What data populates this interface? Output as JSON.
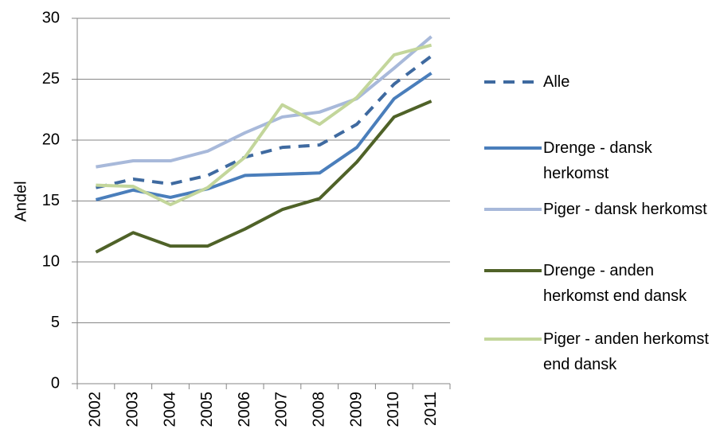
{
  "chart_data": {
    "type": "line",
    "y_label": "Andel",
    "categories": [
      "2002",
      "2003",
      "2004",
      "2005",
      "2006",
      "2007",
      "2008",
      "2009",
      "2010",
      "2011"
    ],
    "ylim": [
      0,
      30
    ],
    "yticks": [
      0,
      5,
      10,
      15,
      20,
      25,
      30
    ],
    "grid": true,
    "series": [
      {
        "name": "Alle",
        "color": "#3f6aa0",
        "dashed": true,
        "values": [
          16.1,
          16.8,
          16.4,
          17.1,
          18.6,
          19.4,
          19.6,
          21.3,
          24.6,
          26.9
        ]
      },
      {
        "name": "Drenge - dansk herkomst",
        "color": "#4a7ebb",
        "values": [
          15.1,
          15.9,
          15.3,
          16.0,
          17.1,
          17.2,
          17.3,
          19.4,
          23.4,
          25.5
        ]
      },
      {
        "name": "Piger - dansk herkomst",
        "color": "#a8b9da",
        "values": [
          17.8,
          18.3,
          18.3,
          19.1,
          20.6,
          21.9,
          22.3,
          23.4,
          25.9,
          28.5
        ]
      },
      {
        "name": "Drenge - anden herkomst end dansk",
        "color": "#4f6228",
        "values": [
          10.8,
          12.4,
          11.3,
          11.3,
          12.7,
          14.3,
          15.2,
          18.2,
          21.9,
          23.2
        ]
      },
      {
        "name": "Piger - anden herkomst end dansk",
        "color": "#c3d69b",
        "values": [
          16.3,
          16.2,
          14.7,
          16.1,
          18.6,
          22.9,
          21.3,
          23.5,
          27.0,
          27.8
        ]
      }
    ]
  }
}
